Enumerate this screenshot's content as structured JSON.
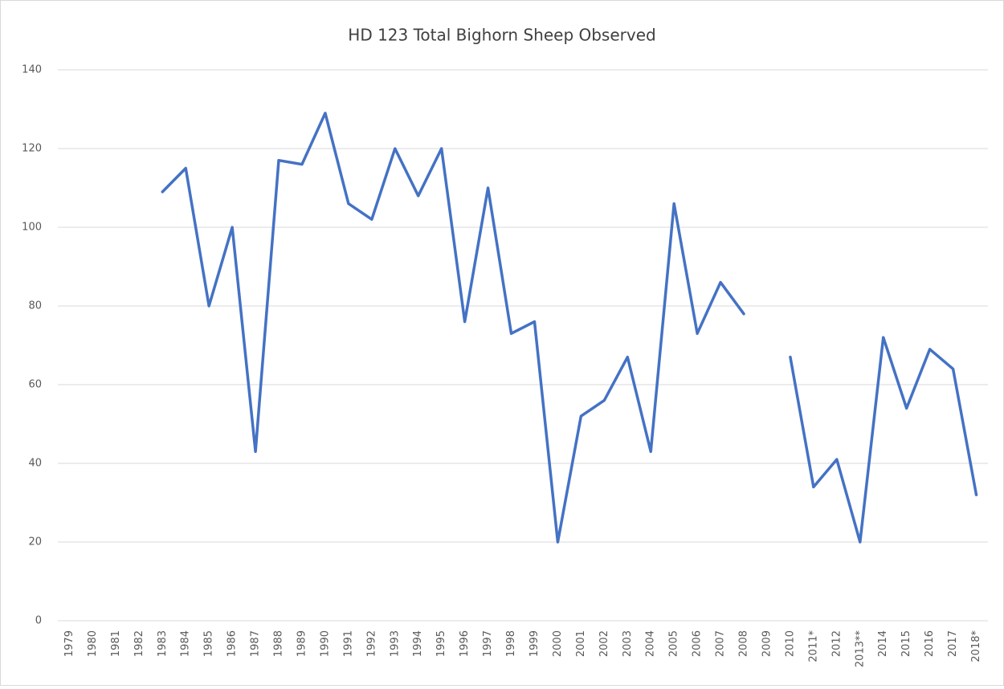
{
  "chart_data": {
    "type": "line",
    "title": "HD 123 Total Bighorn Sheep Observed",
    "categories": [
      "1979",
      "1980",
      "1981",
      "1982",
      "1983",
      "1984",
      "1985",
      "1986",
      "1987",
      "1988",
      "1989",
      "1990",
      "1991",
      "1992",
      "1993",
      "1994",
      "1995",
      "1996",
      "1997",
      "1998",
      "1999",
      "2000",
      "2001",
      "2002",
      "2003",
      "2004",
      "2005",
      "2006",
      "2007",
      "2008",
      "2009",
      "2010",
      "2011*",
      "2012",
      "2013**",
      "2014",
      "2015",
      "2016",
      "2017",
      "2018*"
    ],
    "values": [
      null,
      null,
      null,
      null,
      109,
      115,
      80,
      100,
      43,
      117,
      116,
      129,
      106,
      102,
      120,
      108,
      120,
      76,
      110,
      73,
      76,
      20,
      52,
      56,
      67,
      43,
      106,
      73,
      86,
      78,
      null,
      67,
      34,
      41,
      20,
      72,
      54,
      69,
      64,
      32
    ],
    "color": "#4472c4",
    "ylim": [
      0,
      140
    ],
    "yticks": [
      0,
      20,
      40,
      60,
      80,
      100,
      120,
      140
    ],
    "grid": true
  }
}
